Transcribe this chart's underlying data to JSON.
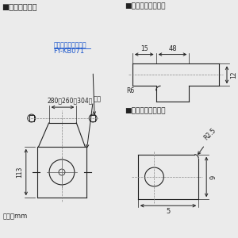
{
  "bg_color": "#ebebeb",
  "line_color": "#222222",
  "text_color": "#222222",
  "blue_text": "#1a55cc",
  "title1": "■吹り金具位置",
  "title2": "■吹り金具穴詳細図",
  "title3": "■本体取付穴詳細図",
  "label_fykb": "吹り金具（別売品）",
  "label_fykb2": "FY-KB071",
  "label_280": "280（260～304）",
  "label_hontai": "本体",
  "label_unit": "単位：mm",
  "dim_48": "48",
  "dim_15": "15",
  "dim_12": "12",
  "dim_R6": "R6",
  "dim_R25": "R2.5",
  "dim_9": "9",
  "dim_5": "5",
  "dim_113": "113"
}
